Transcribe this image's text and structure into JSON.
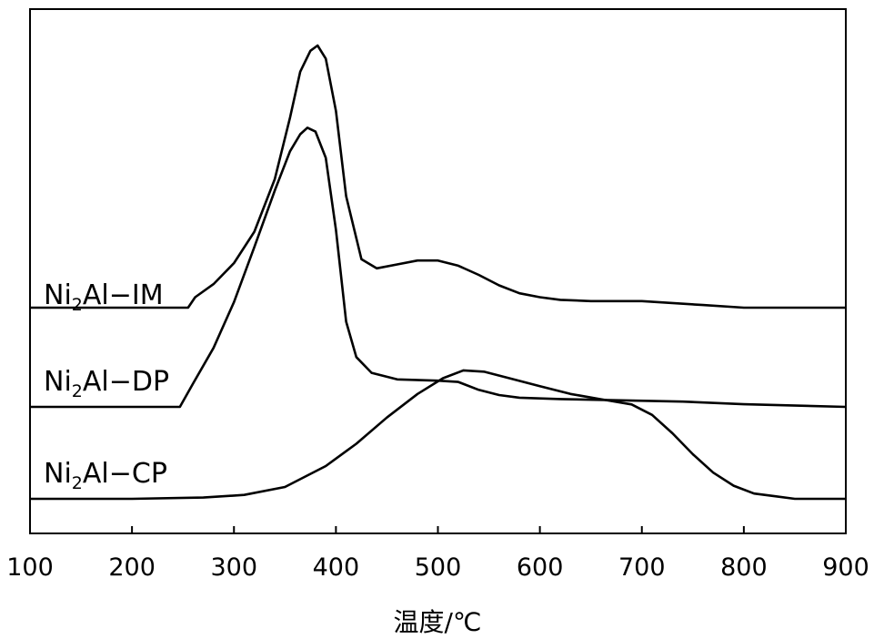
{
  "chart_data": {
    "type": "line",
    "xlabel": "温度/℃",
    "ylabel": "",
    "xlim": [
      100,
      900
    ],
    "x_ticks": [
      "100",
      "200",
      "300",
      "400",
      "500",
      "600",
      "700",
      "800",
      "900"
    ],
    "y_ticks_visible": false,
    "grid": false,
    "legend": "none",
    "series": [
      {
        "name_parts": [
          "Ni",
          "2",
          "Al−IM"
        ],
        "color": "#000000",
        "points": [
          [
            100,
            0.0
          ],
          [
            200,
            0.0
          ],
          [
            255,
            0.0
          ],
          [
            262,
            0.08
          ],
          [
            280,
            0.18
          ],
          [
            300,
            0.34
          ],
          [
            320,
            0.58
          ],
          [
            340,
            0.98
          ],
          [
            355,
            1.45
          ],
          [
            365,
            1.8
          ],
          [
            375,
            1.96
          ],
          [
            382,
            2.0
          ],
          [
            390,
            1.9
          ],
          [
            400,
            1.5
          ],
          [
            410,
            0.85
          ],
          [
            425,
            0.37
          ],
          [
            440,
            0.3
          ],
          [
            460,
            0.33
          ],
          [
            480,
            0.36
          ],
          [
            500,
            0.36
          ],
          [
            520,
            0.32
          ],
          [
            540,
            0.25
          ],
          [
            560,
            0.17
          ],
          [
            580,
            0.11
          ],
          [
            600,
            0.08
          ],
          [
            620,
            0.06
          ],
          [
            650,
            0.05
          ],
          [
            700,
            0.05
          ],
          [
            760,
            0.02
          ],
          [
            800,
            0.0
          ],
          [
            900,
            0.0
          ]
        ]
      },
      {
        "name_parts": [
          "Ni",
          "2",
          "Al−DP"
        ],
        "color": "#000000",
        "points": [
          [
            100,
            0.0
          ],
          [
            200,
            0.0
          ],
          [
            247,
            0.0
          ],
          [
            260,
            0.18
          ],
          [
            280,
            0.45
          ],
          [
            300,
            0.8
          ],
          [
            320,
            1.22
          ],
          [
            340,
            1.65
          ],
          [
            355,
            1.95
          ],
          [
            365,
            2.08
          ],
          [
            372,
            2.13
          ],
          [
            380,
            2.1
          ],
          [
            390,
            1.9
          ],
          [
            400,
            1.35
          ],
          [
            410,
            0.65
          ],
          [
            420,
            0.38
          ],
          [
            435,
            0.26
          ],
          [
            460,
            0.21
          ],
          [
            500,
            0.2
          ],
          [
            520,
            0.19
          ],
          [
            540,
            0.13
          ],
          [
            560,
            0.09
          ],
          [
            580,
            0.07
          ],
          [
            620,
            0.06
          ],
          [
            680,
            0.05
          ],
          [
            740,
            0.04
          ],
          [
            800,
            0.02
          ],
          [
            900,
            0.0
          ]
        ]
      },
      {
        "name_parts": [
          "Ni",
          "2",
          "Al−CP"
        ],
        "color": "#000000",
        "points": [
          [
            100,
            0.0
          ],
          [
            200,
            0.0
          ],
          [
            270,
            0.01
          ],
          [
            310,
            0.03
          ],
          [
            350,
            0.09
          ],
          [
            390,
            0.25
          ],
          [
            420,
            0.42
          ],
          [
            450,
            0.62
          ],
          [
            480,
            0.8
          ],
          [
            505,
            0.92
          ],
          [
            525,
            0.98
          ],
          [
            545,
            0.97
          ],
          [
            570,
            0.92
          ],
          [
            600,
            0.86
          ],
          [
            630,
            0.8
          ],
          [
            660,
            0.76
          ],
          [
            690,
            0.72
          ],
          [
            710,
            0.64
          ],
          [
            730,
            0.5
          ],
          [
            750,
            0.34
          ],
          [
            770,
            0.2
          ],
          [
            790,
            0.1
          ],
          [
            810,
            0.04
          ],
          [
            830,
            0.02
          ],
          [
            850,
            0.0
          ],
          [
            900,
            0.0
          ]
        ]
      }
    ]
  }
}
